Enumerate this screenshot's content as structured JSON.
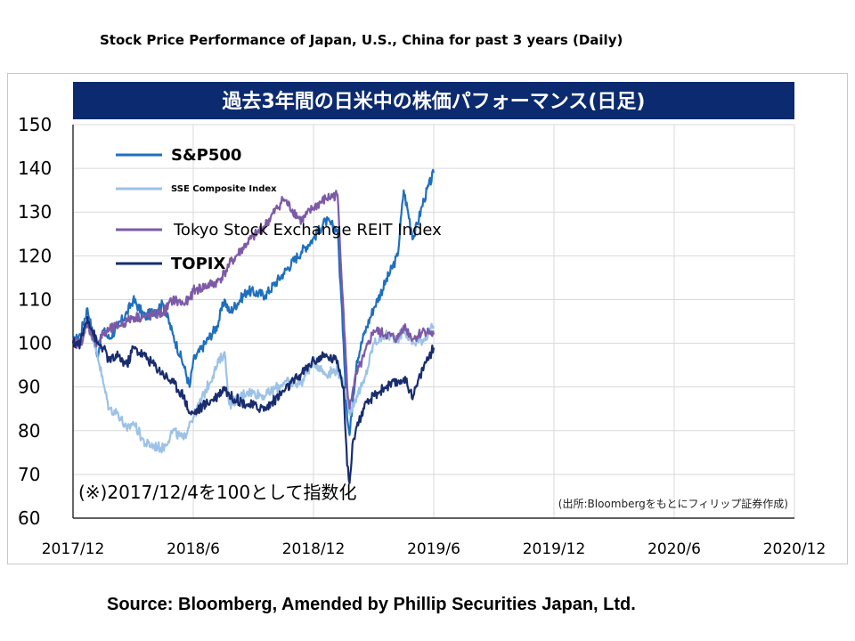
{
  "page": {
    "title": "Stock Price Performance of Japan, U.S., China for past 3 years (Daily)",
    "source": "Source: Bloomberg, Amended by Phillip Securities Japan, Ltd."
  },
  "chart_data": {
    "type": "line",
    "title": "過去3年間の日米中の株価パフォーマンス(日足)",
    "note": "(※)2017/12/4を100として指数化",
    "source_note": "(出所:Bloombergをもとにフィリップ証券作成)",
    "xlabel": "",
    "ylabel": "",
    "ylim": [
      60,
      150
    ],
    "yticks": [
      60,
      70,
      80,
      90,
      100,
      110,
      120,
      130,
      140,
      150
    ],
    "xticks": [
      "2017/12",
      "2018/6",
      "2018/12",
      "2019/6",
      "2019/12",
      "2020/6",
      "2020/12"
    ],
    "x": [
      0,
      0.06,
      0.12,
      0.2,
      0.25,
      0.3,
      0.375,
      0.45,
      0.5,
      0.6,
      0.75,
      0.83,
      0.92,
      0.97,
      1.0,
      1.2,
      1.26,
      1.3,
      1.45,
      1.6,
      1.75,
      1.9,
      2.0,
      2.1,
      2.2,
      2.25,
      2.28,
      2.3,
      2.33,
      2.36,
      2.42,
      2.5,
      2.6,
      2.7,
      2.75,
      2.83,
      2.92,
      3.0
    ],
    "grid": true,
    "legend_position": "top-left",
    "series": [
      {
        "name": "S&P500",
        "color": "#1f6fc0",
        "values": [
          100,
          102,
          108,
          97,
          103,
          101,
          104,
          107,
          110,
          106,
          109,
          102,
          95,
          90,
          96,
          104,
          110,
          107,
          112,
          111,
          116,
          121,
          124,
          128,
          126,
          100,
          83,
          79,
          88,
          96,
          102,
          108,
          114,
          120,
          135,
          124,
          133,
          139
        ]
      },
      {
        "name": "SSE Composite Index",
        "color": "#9cc2e8",
        "values": [
          100,
          100,
          105,
          98,
          91,
          85,
          84,
          80,
          82,
          77,
          76,
          80,
          78,
          82,
          83,
          95,
          98,
          86,
          89,
          88,
          91,
          91,
          96,
          93,
          94,
          90,
          88,
          84,
          86,
          88,
          91,
          100,
          102,
          101,
          103,
          100,
          101,
          104
        ]
      },
      {
        "name": "Tokyo Stock Exchange REIT Index",
        "color": "#7d5aa6",
        "values": [
          100,
          100,
          104,
          100,
          102,
          103,
          104,
          105,
          106,
          106,
          107,
          110,
          109,
          110,
          112,
          114,
          116,
          118,
          123,
          127,
          133,
          128,
          131,
          133,
          134,
          107,
          90,
          85,
          90,
          93,
          97,
          103,
          102,
          101,
          104,
          101,
          103,
          102
        ]
      },
      {
        "name": "TOPIX",
        "color": "#182c6e",
        "values": [
          100,
          100,
          106,
          100,
          99,
          96,
          97,
          95,
          99,
          97,
          93,
          91,
          88,
          84,
          84,
          88,
          90,
          88,
          86,
          85,
          89,
          93,
          96,
          97,
          96,
          90,
          72,
          68,
          78,
          81,
          85,
          88,
          90,
          91,
          92,
          88,
          95,
          99
        ]
      }
    ]
  }
}
